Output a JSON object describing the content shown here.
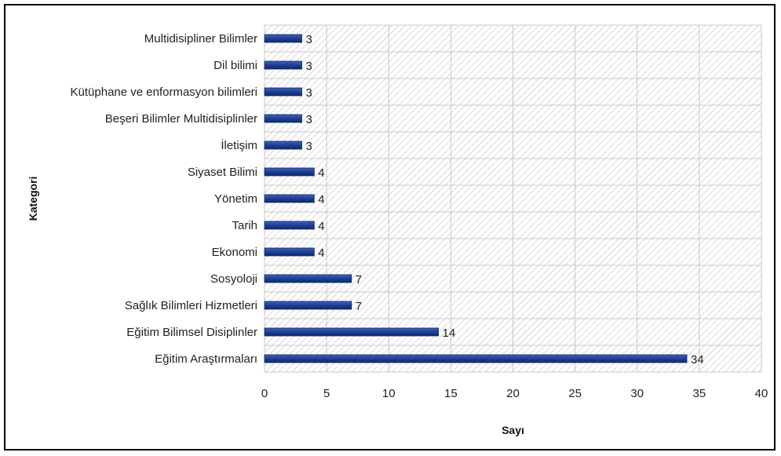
{
  "chart_data": {
    "type": "bar",
    "orientation": "horizontal",
    "xlabel": "Sayı",
    "ylabel": "Kategori",
    "xlim": [
      0,
      40
    ],
    "xticks": [
      0,
      5,
      10,
      15,
      20,
      25,
      30,
      35,
      40
    ],
    "grid": true,
    "legend": "none",
    "bar_color": "#1f3f8f",
    "background_pattern": "diagonal-hatch",
    "categories": [
      "Multidisipliner Bilimler",
      "Dil bilimi",
      "Kütüphane ve enformasyon bilimleri",
      "Beşeri Bilimler Multidisiplinler",
      "İletişim",
      "Siyaset Bilimi",
      "Yönetim",
      "Tarih",
      "Ekonomi",
      "Sosyoloji",
      "Sağlık Bilimleri Hizmetleri",
      "Eğitim Bilimsel Disiplinler",
      "Eğitim Araştırmaları"
    ],
    "values": [
      3,
      3,
      3,
      3,
      3,
      4,
      4,
      4,
      4,
      7,
      7,
      14,
      34
    ]
  }
}
